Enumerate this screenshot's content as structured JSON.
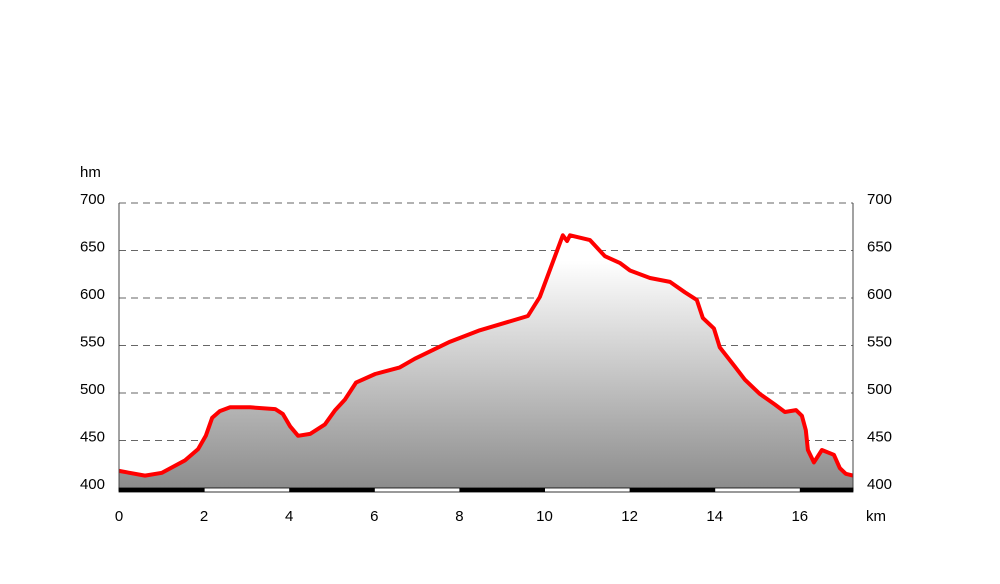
{
  "chart_data": {
    "type": "area",
    "y_unit": "hm",
    "x_unit": "km",
    "x": [
      0,
      0.61,
      1.01,
      1.55,
      1.86,
      2.04,
      2.19,
      2.37,
      2.61,
      3.08,
      3.67,
      3.85,
      4.02,
      4.21,
      4.49,
      4.84,
      5.08,
      5.31,
      5.57,
      6.02,
      6.6,
      6.95,
      7.78,
      8.48,
      9.61,
      9.89,
      10.43,
      10.53,
      10.6,
      11.07,
      11.42,
      11.77,
      12.01,
      12.48,
      12.95,
      13.3,
      13.58,
      13.72,
      13.98,
      14.12,
      14.47,
      14.71,
      15.06,
      15.41,
      15.65,
      15.91,
      16.05,
      16.14,
      16.19,
      16.33,
      16.52,
      16.8,
      16.94,
      17.08,
      17.25
    ],
    "series": [
      {
        "color": "#ff0000",
        "values": [
          418,
          413,
          416,
          429,
          441,
          455,
          474,
          481,
          485,
          485,
          483,
          478,
          465,
          455,
          457,
          467,
          482,
          493,
          511,
          520,
          527,
          536,
          554,
          566,
          581,
          601,
          666,
          660,
          666,
          661,
          644,
          637,
          629,
          621,
          617,
          606,
          598,
          579,
          568,
          548,
          528,
          514,
          499,
          488,
          480,
          482,
          476,
          461,
          440,
          427,
          440,
          435,
          421,
          415,
          413
        ]
      }
    ],
    "xlim": [
      0,
      17.25
    ],
    "xticks": [
      0,
      2,
      4,
      6,
      8,
      10,
      12,
      14,
      16
    ],
    "ylim": [
      400,
      700
    ],
    "yticks": [
      400,
      450,
      500,
      550,
      600,
      650,
      700
    ],
    "grid": true
  }
}
